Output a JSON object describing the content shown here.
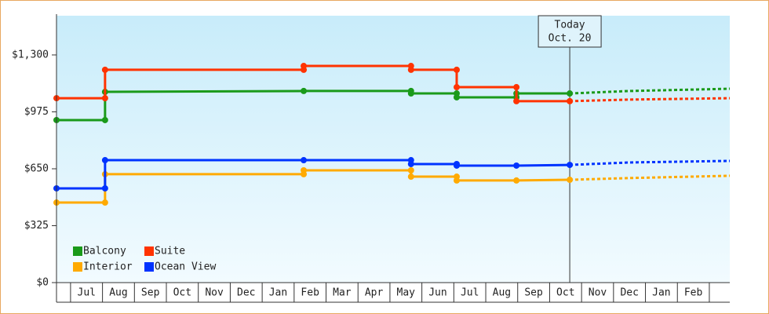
{
  "chart_data": {
    "type": "line",
    "xlim": [
      -0.44,
      20.64
    ],
    "ylim": [
      0,
      1524
    ],
    "yticks": [
      {
        "value": 0,
        "label": "$0"
      },
      {
        "value": 325,
        "label": "$325"
      },
      {
        "value": 650,
        "label": "$650"
      },
      {
        "value": 975,
        "label": "$975"
      },
      {
        "value": 1300,
        "label": "$1,300"
      }
    ],
    "xticks": [
      {
        "value": 0.5,
        "label": "Jul"
      },
      {
        "value": 1.5,
        "label": "Aug"
      },
      {
        "value": 2.5,
        "label": "Sep"
      },
      {
        "value": 3.5,
        "label": "Oct"
      },
      {
        "value": 4.5,
        "label": "Nov"
      },
      {
        "value": 5.5,
        "label": "Dec"
      },
      {
        "value": 6.5,
        "label": "Jan"
      },
      {
        "value": 7.5,
        "label": "Feb"
      },
      {
        "value": 8.5,
        "label": "Mar"
      },
      {
        "value": 9.5,
        "label": "Apr"
      },
      {
        "value": 10.5,
        "label": "May"
      },
      {
        "value": 11.5,
        "label": "Jun"
      },
      {
        "value": 12.5,
        "label": "Jul"
      },
      {
        "value": 13.5,
        "label": "Aug"
      },
      {
        "value": 14.5,
        "label": "Sep"
      },
      {
        "value": 15.5,
        "label": "Oct"
      },
      {
        "value": 16.5,
        "label": "Nov"
      },
      {
        "value": 17.5,
        "label": "Dec"
      },
      {
        "value": 18.5,
        "label": "Jan"
      },
      {
        "value": 19.5,
        "label": "Feb"
      }
    ],
    "grid": false,
    "annotation": {
      "x": 15.63,
      "lines": [
        "Today",
        "Oct. 20"
      ]
    },
    "series": [
      {
        "name": "Balcony",
        "color": "#1a9a1a",
        "x": [
          -0.44,
          1.08,
          1.08,
          7.3,
          10.66,
          10.66,
          12.09,
          12.09,
          13.96,
          13.96,
          15.63
        ],
        "values": [
          928,
          928,
          1089,
          1094,
          1094,
          1080,
          1080,
          1058,
          1058,
          1080,
          1080
        ],
        "forecast_x": [
          15.63,
          17.5,
          20.64
        ],
        "forecast_values": [
          1080,
          1094,
          1107
        ]
      },
      {
        "name": "Suite",
        "color": "#ff3300",
        "x": [
          -0.44,
          1.08,
          1.08,
          7.3,
          7.3,
          10.66,
          10.66,
          12.09,
          12.09,
          13.96,
          13.96,
          15.63
        ],
        "values": [
          1053,
          1053,
          1215,
          1215,
          1237,
          1237,
          1215,
          1215,
          1116,
          1116,
          1036,
          1036
        ],
        "forecast_x": [
          15.63,
          17.5,
          20.64
        ],
        "forecast_values": [
          1036,
          1045,
          1053
        ]
      },
      {
        "name": "Interior",
        "color": "#ffaa00",
        "x": [
          -0.44,
          1.08,
          1.08,
          7.3,
          7.3,
          10.66,
          10.66,
          12.09,
          12.09,
          13.96,
          15.63
        ],
        "values": [
          457,
          457,
          619,
          619,
          641,
          641,
          605,
          605,
          583,
          583,
          587
        ],
        "forecast_x": [
          15.63,
          17.5,
          20.64
        ],
        "forecast_values": [
          587,
          597,
          610
        ]
      },
      {
        "name": "Ocean View",
        "color": "#0033ff",
        "x": [
          -0.44,
          1.08,
          1.08,
          7.3,
          10.66,
          10.66,
          12.09,
          12.09,
          13.96,
          15.63
        ],
        "values": [
          538,
          538,
          699,
          699,
          699,
          677,
          677,
          668,
          668,
          672
        ],
        "forecast_x": [
          15.63,
          17.5,
          20.64
        ],
        "forecast_values": [
          672,
          686,
          695
        ]
      }
    ]
  }
}
